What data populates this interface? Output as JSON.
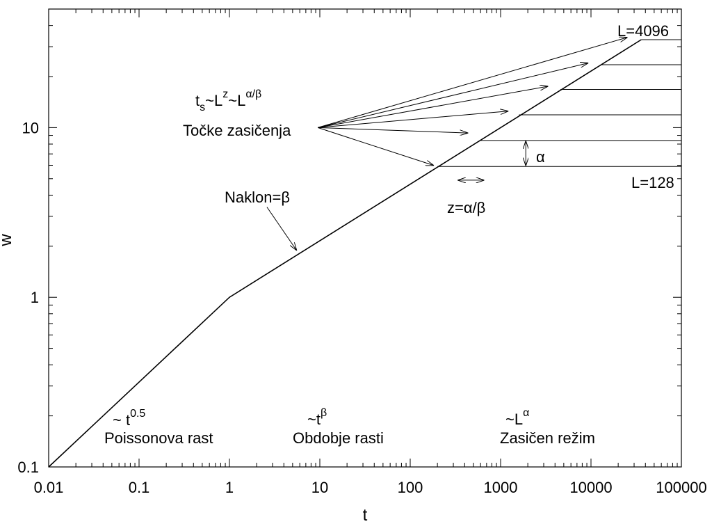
{
  "chart_data": {
    "type": "line",
    "x_scale": "log",
    "y_scale": "log",
    "xlabel": "t",
    "ylabel": "w",
    "xlim": [
      0.01,
      100000
    ],
    "ylim": [
      0.1,
      50
    ],
    "x_ticks": [
      {
        "value": 0.01,
        "label": "0.01"
      },
      {
        "value": 0.1,
        "label": "0.1"
      },
      {
        "value": 1,
        "label": "1"
      },
      {
        "value": 10,
        "label": "10"
      },
      {
        "value": 100,
        "label": "100"
      },
      {
        "value": 1000,
        "label": "1000"
      },
      {
        "value": 10000,
        "label": "10000"
      },
      {
        "value": 100000,
        "label": "100000"
      }
    ],
    "y_ticks": [
      {
        "value": 0.1,
        "label": "0.1"
      },
      {
        "value": 1,
        "label": "1"
      },
      {
        "value": 10,
        "label": "10"
      }
    ],
    "grid": false,
    "growth_curve": {
      "points": [
        [
          0.01,
          0.1
        ],
        [
          1,
          1
        ],
        [
          36000,
          33
        ]
      ]
    },
    "saturation_plateaus": [
      {
        "t_start": 200,
        "w": 5.9
      },
      {
        "t_start": 600,
        "w": 8.4
      },
      {
        "t_start": 1600,
        "w": 11.9
      },
      {
        "t_start": 4600,
        "w": 16.8
      },
      {
        "t_start": 13000,
        "w": 23.5
      },
      {
        "t_start": 36000,
        "w": 33
      }
    ],
    "arrow_origin": [
      9.5,
      10
    ],
    "saturation_arrow_tips": [
      [
        180,
        6.0
      ],
      [
        430,
        9.3
      ],
      [
        1200,
        12.5
      ],
      [
        3300,
        17.5
      ],
      [
        9200,
        24.0
      ],
      [
        25000,
        34.0
      ]
    ],
    "naklon_arrow": {
      "from": [
        2.6,
        3.4
      ],
      "to": [
        5.5,
        1.9
      ]
    },
    "z_arrow": {
      "from": [
        340,
        4.9
      ],
      "to": [
        650,
        4.9
      ]
    },
    "alpha_arrow": {
      "t": 1900,
      "from": 8.3,
      "to": 6.0
    },
    "annotations": {
      "ts_base": "t",
      "ts_sub": "s",
      "ts_mid1": "~L",
      "ts_sup1": "z",
      "ts_mid2": "~L",
      "ts_sup2": "α/β",
      "tocke": "Točke zasičenja",
      "naklon": "Naklon=β",
      "z_rel": "z=α/β",
      "alpha": "α",
      "L_top": "L=4096",
      "L_bottom": "L=128",
      "poisson_exp_prefix": "~ t",
      "poisson_exp": "0.5",
      "poisson_label": "Poissonova rast",
      "growth_exp_prefix": "~t",
      "growth_exp": "β",
      "growth_label": "Obdobje rasti",
      "sat_exp_prefix": "~L",
      "sat_exp": "α",
      "sat_label": "Zasičen režim"
    }
  }
}
